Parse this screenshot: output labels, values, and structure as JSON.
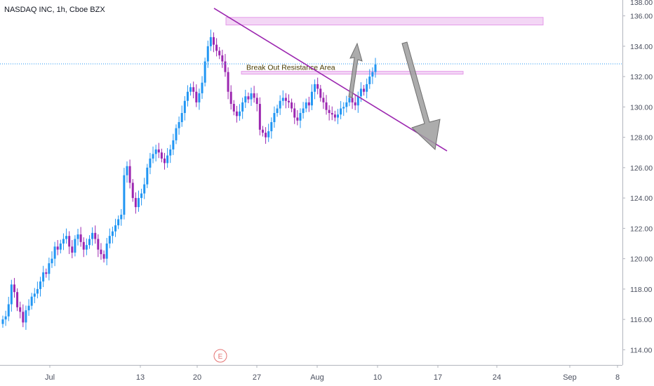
{
  "header": {
    "symbol_text": "NASDAQ INC, 1h, Cboe BZX"
  },
  "chart_data": {
    "type": "candlestick",
    "ylim": [
      113,
      137
    ],
    "y_ticks": [
      114,
      116,
      118,
      120,
      122,
      124,
      126,
      128,
      130,
      132,
      134,
      136
    ],
    "x_tick_labels": [
      "Jul",
      "13",
      "20",
      "27",
      "Aug",
      "10",
      "17",
      "24",
      "Sep",
      "8"
    ],
    "last_price": 132.84,
    "last_price_label": "132.84",
    "earnings_marker": "E",
    "annotations": {
      "resistance_label": "Break Out Resistance Area",
      "resistance_zone": [
        132.2,
        132.3
      ],
      "upper_zone": [
        135.4,
        135.9
      ]
    },
    "colors": {
      "up": "#2196f3",
      "down": "#9c27b0",
      "trendline": "#9c27b0",
      "price_line": "#2196f3",
      "zone_fill": "#f3d6f5",
      "zone_border": "#e59be9",
      "arrow": "#9e9e9e"
    },
    "trendline": {
      "from": [
        "Jul 23",
        136.5
      ],
      "to": [
        "Aug 17",
        127.1
      ]
    },
    "closes": [
      116.0,
      116.2,
      117.0,
      118.3,
      117.8,
      116.8,
      116.5,
      115.8,
      116.6,
      116.9,
      117.5,
      117.7,
      118.0,
      118.5,
      119.1,
      119.0,
      119.7,
      120.0,
      120.8,
      120.6,
      121.0,
      121.3,
      121.5,
      120.8,
      120.4,
      121.3,
      121.6,
      121.1,
      120.6,
      120.9,
      121.3,
      121.7,
      121.3,
      120.6,
      120.3,
      120.0,
      121.0,
      121.5,
      121.8,
      122.2,
      122.6,
      122.9,
      125.5,
      126.1,
      125.0,
      124.0,
      123.4,
      124.0,
      124.3,
      124.9,
      126.0,
      126.6,
      126.9,
      127.2,
      127.0,
      126.6,
      126.3,
      126.8,
      127.2,
      127.8,
      128.6,
      129.0,
      129.6,
      130.4,
      131.0,
      131.3,
      131.0,
      130.3,
      130.9,
      131.6,
      133.0,
      134.0,
      134.6,
      134.1,
      133.7,
      133.4,
      133.0,
      132.3,
      131.0,
      130.2,
      129.7,
      129.4,
      129.7,
      130.3,
      130.7,
      130.5,
      130.9,
      130.6,
      130.2,
      128.5,
      128.3,
      128.0,
      128.4,
      129.0,
      129.6,
      129.9,
      130.4,
      130.6,
      130.4,
      130.3,
      129.9,
      129.3,
      129.1,
      129.6,
      129.9,
      130.3,
      130.1,
      131.0,
      131.5,
      131.2,
      130.6,
      130.3,
      129.8,
      129.6,
      129.5,
      129.3,
      129.5,
      129.9,
      130.0,
      130.3,
      130.6,
      130.3,
      130.1,
      130.7,
      131.2,
      131.0,
      131.5,
      132.0,
      132.3,
      132.8
    ]
  }
}
